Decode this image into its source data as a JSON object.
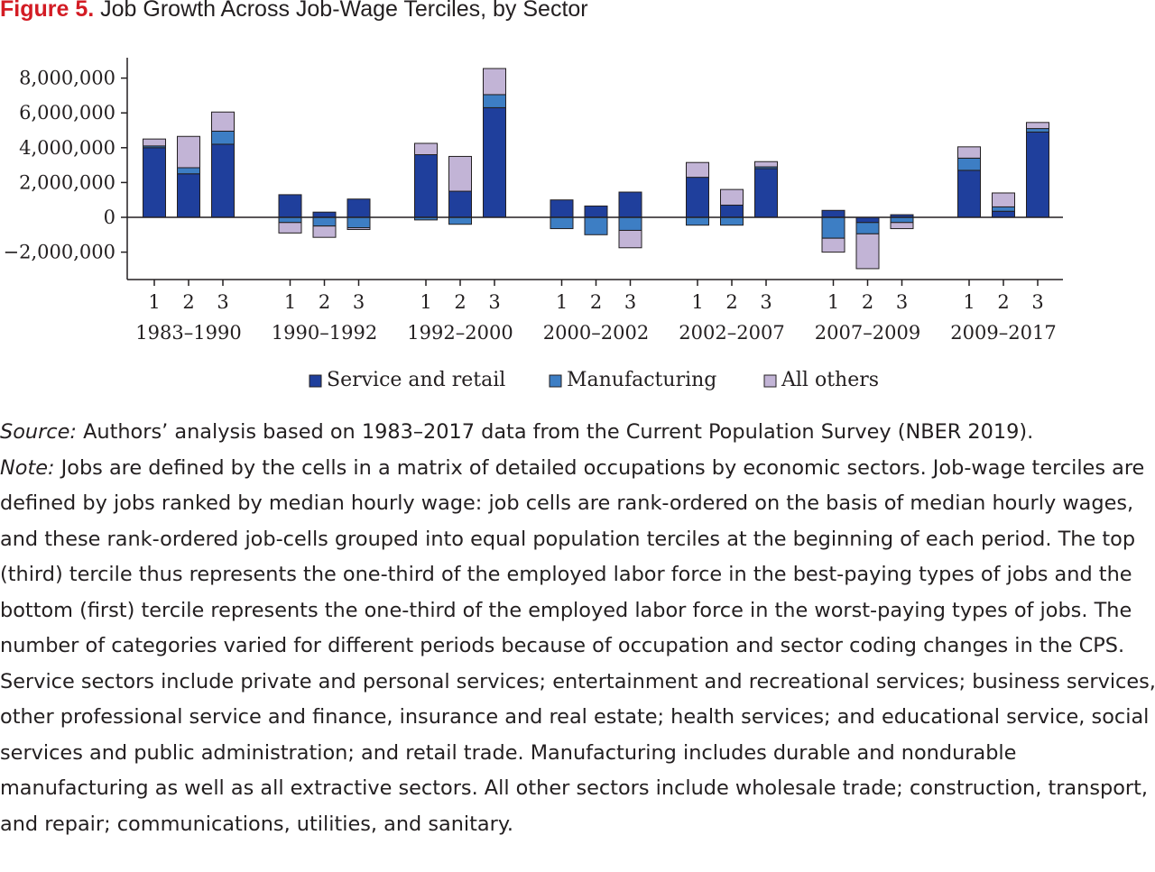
{
  "figure": {
    "label": "Figure 5.",
    "title": "Job Growth Across Job-Wage Terciles, by Sector"
  },
  "chart_data": {
    "type": "bar",
    "stacked": true,
    "title": "Job Growth Across Job-Wage Terciles, by Sector",
    "xlabel": "",
    "ylabel": "",
    "ylim": [
      -3500000,
      9000000
    ],
    "yticks": [
      -2000000,
      0,
      2000000,
      4000000,
      6000000,
      8000000
    ],
    "ytick_labels": [
      "−2,000,000",
      "0",
      "2,000,000",
      "4,000,000",
      "6,000,000",
      "8,000,000"
    ],
    "grid": false,
    "legend_position": "bottom",
    "periods": [
      "1983–1990",
      "1990–1992",
      "1992–2000",
      "2000–2002",
      "2002–2007",
      "2007–2009",
      "2009–2017"
    ],
    "terciles": [
      "1",
      "2",
      "3"
    ],
    "series": [
      {
        "name": "Service and retail",
        "color": "#1f3f9c",
        "values": [
          [
            4000000,
            2500000,
            4200000
          ],
          [
            1300000,
            300000,
            1050000
          ],
          [
            3600000,
            1500000,
            6300000
          ],
          [
            1000000,
            650000,
            1450000
          ],
          [
            2300000,
            700000,
            2800000
          ],
          [
            400000,
            -300000,
            150000
          ],
          [
            2700000,
            350000,
            4900000
          ]
        ]
      },
      {
        "name": "Manufacturing",
        "color": "#3d7ec4",
        "values": [
          [
            100000,
            350000,
            750000
          ],
          [
            -300000,
            -500000,
            -600000
          ],
          [
            -150000,
            -400000,
            750000
          ],
          [
            -650000,
            -1000000,
            -750000
          ],
          [
            -450000,
            -450000,
            100000
          ],
          [
            -1200000,
            -650000,
            -300000
          ],
          [
            700000,
            250000,
            200000
          ]
        ]
      },
      {
        "name": "All others",
        "color": "#c2b4d6",
        "values": [
          [
            400000,
            1800000,
            1100000
          ],
          [
            -600000,
            -650000,
            -100000
          ],
          [
            650000,
            2000000,
            1500000
          ],
          [
            0,
            0,
            -1000000
          ],
          [
            850000,
            900000,
            300000
          ],
          [
            -800000,
            -2000000,
            -350000
          ],
          [
            650000,
            800000,
            350000
          ]
        ]
      }
    ]
  },
  "notes": {
    "source_label": "Source:",
    "source_text": " Authors’ analysis based on 1983–2017 data from the Current Population Survey (NBER 2019).",
    "note_label": "Note:",
    "note_text": " Jobs are defined by the cells in a matrix of detailed occupations by economic sectors. Job-wage terciles are defined by jobs ranked by median hourly wage: job cells are rank-ordered on the basis of median hourly wages, and these rank-ordered job-cells grouped into equal population terciles at the beginning of each period. The top (third) tercile thus represents the one-third of the employed labor force in the best-paying types of jobs and the bottom (first) tercile represents the one-third of the em­ployed labor force in the worst-paying types of jobs. The number of categories varied for different peri­ods because of occupation and sector coding changes in the CPS. Service sectors include private and personal services; entertainment and recreational services; business services, other professional ser­vice and finance, insurance and real estate; health services; and educational service, social services and public administration; and retail trade. Manufacturing includes durable and nondurable manufacturing as well as all extractive sectors. All other sectors include wholesale trade; construction, transport, and repair; communications, utilities, and sanitary."
  }
}
